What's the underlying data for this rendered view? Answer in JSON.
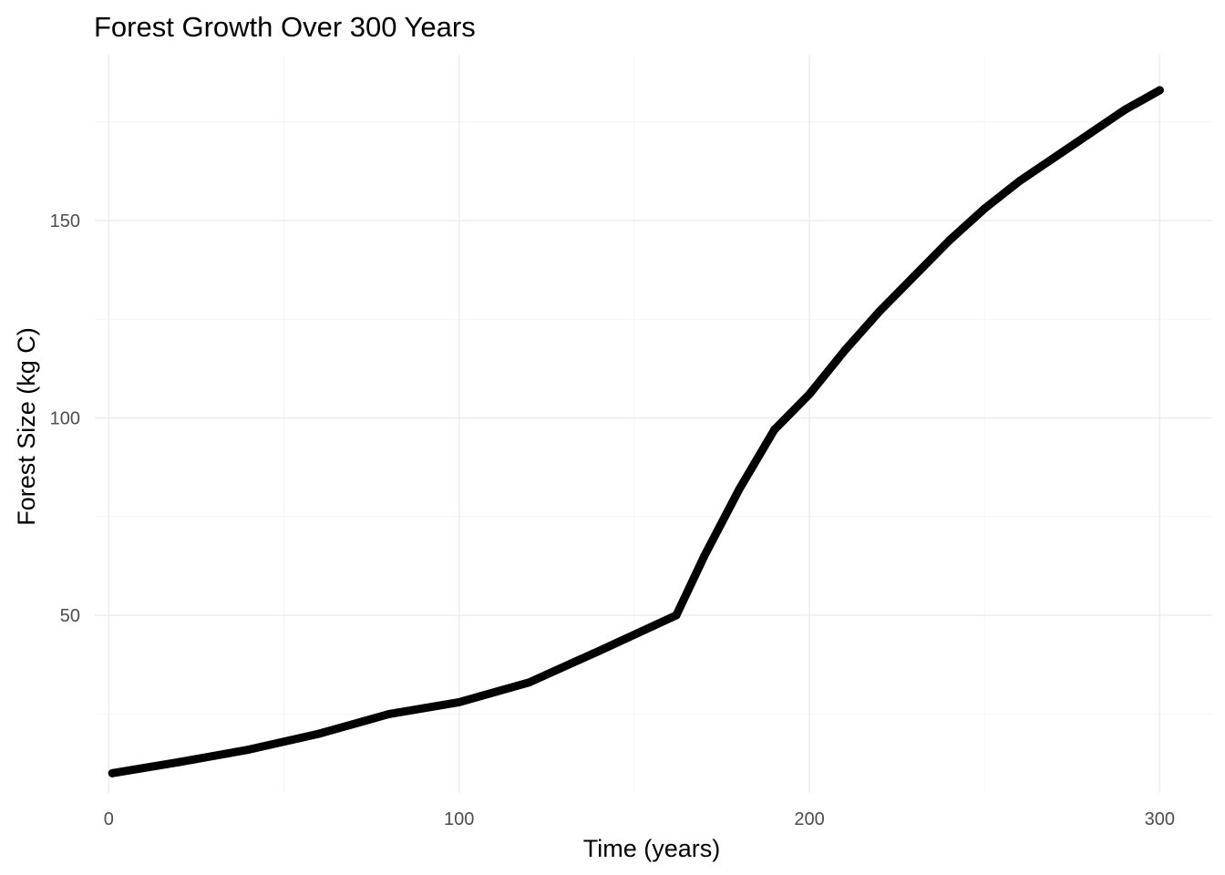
{
  "chart_data": {
    "type": "line",
    "title": "Forest Growth Over 300 Years",
    "xlabel": "Time (years)",
    "ylabel": "Forest Size (kg C)",
    "xlim": [
      -4,
      315
    ],
    "ylim": [
      5,
      192
    ],
    "x_ticks": [
      0,
      100,
      200,
      300
    ],
    "y_ticks": [
      50,
      100,
      150
    ],
    "x_minor_ticks": [
      50,
      150,
      250
    ],
    "y_minor_ticks": [
      25,
      75,
      125,
      175
    ],
    "grid": true,
    "legend": "none",
    "line_color": "#000000",
    "series": [
      {
        "x": [
          1,
          20,
          40,
          60,
          80,
          100,
          120,
          140,
          162,
          170,
          180,
          190,
          200,
          210,
          220,
          230,
          240,
          250,
          260,
          270,
          280,
          290,
          300
        ],
        "values": [
          10,
          12.8,
          16,
          20,
          25,
          28,
          33,
          41,
          50,
          65,
          82,
          97,
          106,
          117,
          127,
          136,
          145,
          153,
          160,
          166,
          172,
          178,
          183
        ]
      }
    ]
  }
}
